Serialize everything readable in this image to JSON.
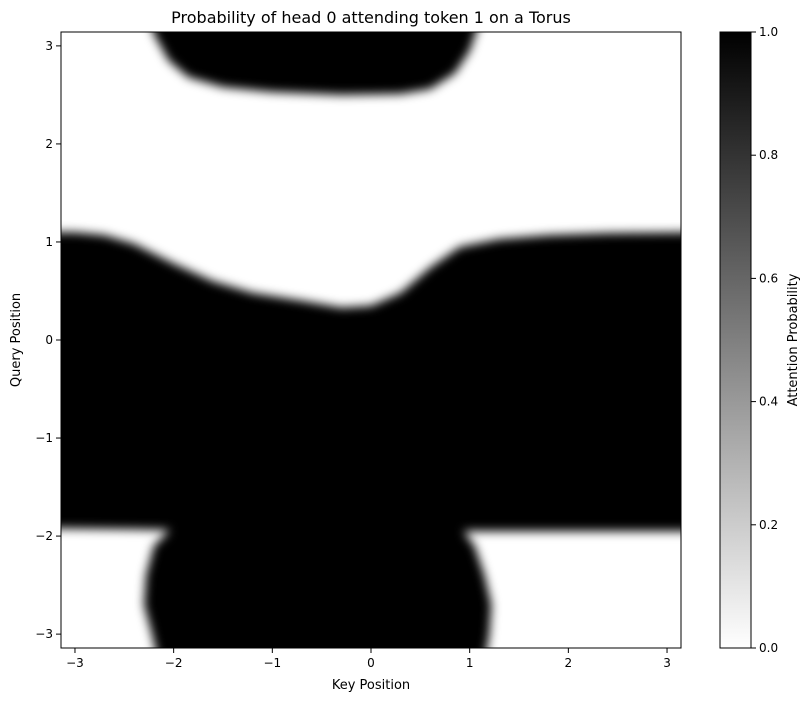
{
  "chart_data": {
    "type": "heatmap",
    "title": "Probability of head 0 attending token 1 on a Torus",
    "xlabel": "Key Position",
    "ylabel": "Query Position",
    "xlim": [
      -3.1416,
      3.1416
    ],
    "ylim": [
      -3.1416,
      3.1416
    ],
    "xticks": [
      -3,
      -2,
      -1,
      0,
      1,
      2,
      3
    ],
    "yticks": [
      -3,
      -2,
      -1,
      0,
      1,
      2,
      3
    ],
    "xtick_labels": [
      "−3",
      "−2",
      "−1",
      "0",
      "1",
      "2",
      "3"
    ],
    "ytick_labels": [
      "−3",
      "−2",
      "−1",
      "0",
      "1",
      "2",
      "3"
    ],
    "colormap": "gray_r",
    "colorbar": {
      "label": "Attention Probability",
      "range": [
        0.0,
        1.0
      ],
      "ticks": [
        0.0,
        0.2,
        0.4,
        0.6,
        0.8,
        1.0
      ],
      "tick_labels": [
        "0.0",
        "0.2",
        "0.4",
        "0.6",
        "0.8",
        "1.0"
      ]
    },
    "regions": [
      {
        "value": 1.0,
        "key_range": [
          -2.2,
          1.1
        ],
        "query_range": [
          2.5,
          3.1416
        ],
        "description": "top dark lobe"
      },
      {
        "value": 1.0,
        "key_range": [
          -3.1416,
          3.1416
        ],
        "query_range": [
          -1.95,
          1.1
        ],
        "description": "central dark band, dips to query 0.35 near key 0"
      },
      {
        "value": 1.0,
        "key_range": [
          -2.3,
          1.2
        ],
        "query_range": [
          -3.1416,
          -1.95
        ],
        "description": "bottom dark lobe"
      }
    ],
    "grid": false
  }
}
